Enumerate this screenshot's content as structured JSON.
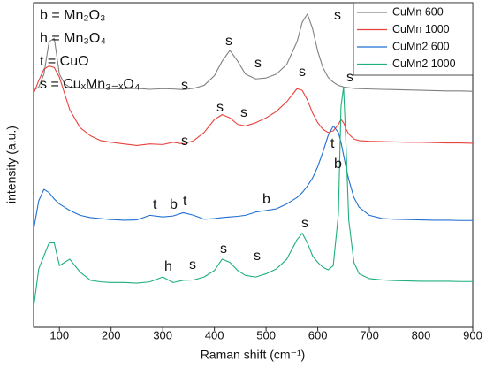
{
  "chart_data": {
    "type": "line",
    "xlabel": "Raman shift (cm⁻¹)",
    "ylabel": "intensity (a.u.)",
    "x": [
      50,
      60,
      70,
      80,
      90,
      100,
      110,
      120,
      140,
      160,
      180,
      200,
      225,
      250,
      275,
      300,
      320,
      340,
      360,
      380,
      400,
      415,
      430,
      445,
      460,
      480,
      500,
      520,
      540,
      560,
      570,
      580,
      590,
      600,
      610,
      620,
      630,
      640,
      645,
      650,
      655,
      660,
      670,
      680,
      700,
      725,
      750,
      775,
      800,
      825,
      850,
      875,
      900
    ],
    "series": [
      {
        "name": "CuMn 600",
        "color": "#808080",
        "values": [
          73,
          74,
          78,
          88,
          89,
          78,
          75,
          74,
          73.8,
          73.5,
          73.6,
          73.5,
          73.4,
          73.6,
          73.3,
          73.5,
          73.4,
          73.2,
          73.6,
          74.5,
          77.5,
          82,
          85.3,
          82,
          78,
          76.5,
          76.8,
          78,
          81,
          88,
          94,
          96.5,
          92,
          85,
          80,
          77,
          75.5,
          74.5,
          74.3,
          74,
          73.9,
          73.8,
          73.6,
          73.5,
          73.4,
          73.3,
          73.2,
          73.1,
          73,
          72.9,
          72.8,
          72.8,
          72.7
        ]
      },
      {
        "name": "CuMn 1000",
        "color": "#e8423c",
        "values": [
          72,
          76,
          79.5,
          80.5,
          80,
          77,
          72,
          67,
          61.5,
          59,
          57.5,
          57,
          56.5,
          56,
          56.5,
          56.3,
          57,
          56.5,
          57.5,
          60,
          64,
          65.5,
          64.5,
          62.5,
          62,
          63,
          64.5,
          66.5,
          69.5,
          73.5,
          73,
          70,
          66,
          63,
          61,
          60,
          60.5,
          62.5,
          64,
          63,
          61,
          59.5,
          58,
          57.5,
          57.3,
          57.2,
          57.1,
          57,
          57,
          56.9,
          56.8,
          56.8,
          56.7
        ]
      },
      {
        "name": "CuMn2 600",
        "color": "#1f6fd1",
        "values": [
          30,
          39,
          42.5,
          41.5,
          39.5,
          38,
          37,
          36,
          34.5,
          33.8,
          33.5,
          33.2,
          33,
          33.1,
          34.5,
          34,
          34.3,
          35.3,
          34.5,
          33.3,
          33.5,
          33.8,
          34,
          34.2,
          34.5,
          35.5,
          36,
          36.5,
          38,
          40,
          41.5,
          43.5,
          46,
          49.5,
          54,
          59,
          62,
          60,
          57,
          53,
          49,
          45.5,
          40,
          37,
          34.5,
          33.5,
          33.3,
          33.2,
          33.1,
          33,
          33,
          32.9,
          32.9
        ]
      },
      {
        "name": "CuMn2 1000",
        "color": "#1fb07a",
        "values": [
          6,
          18,
          22,
          26,
          26,
          19,
          20,
          21,
          17,
          14.5,
          14,
          13.8,
          13.8,
          13.6,
          14,
          15.5,
          13.8,
          14.5,
          14.6,
          15.5,
          17.5,
          21,
          20,
          17.5,
          16,
          15.5,
          16.5,
          18,
          21,
          27,
          29,
          26,
          22,
          20,
          18.5,
          17.7,
          19,
          35,
          68,
          74,
          55,
          33,
          20,
          16.5,
          15,
          14.6,
          14.4,
          14.3,
          14.2,
          14.2,
          14.2,
          14.1,
          14.1
        ]
      }
    ],
    "xlim": [
      50,
      900
    ],
    "ylim": [
      0,
      100
    ],
    "xticks": [
      100,
      200,
      300,
      400,
      500,
      600,
      700,
      800,
      900
    ],
    "legend": "upper right",
    "annotations": [
      "b = Mn₂O₃",
      "h = Mn₃O₄",
      "t = CuO",
      "s = CuₓMn₃₋ₓO₄",
      "s",
      "s",
      "s",
      "s",
      "s",
      "s",
      "s",
      "s",
      "s",
      "t",
      "b",
      "t",
      "b",
      "t",
      "b",
      "h",
      "s",
      "s",
      "s",
      "s"
    ]
  }
}
